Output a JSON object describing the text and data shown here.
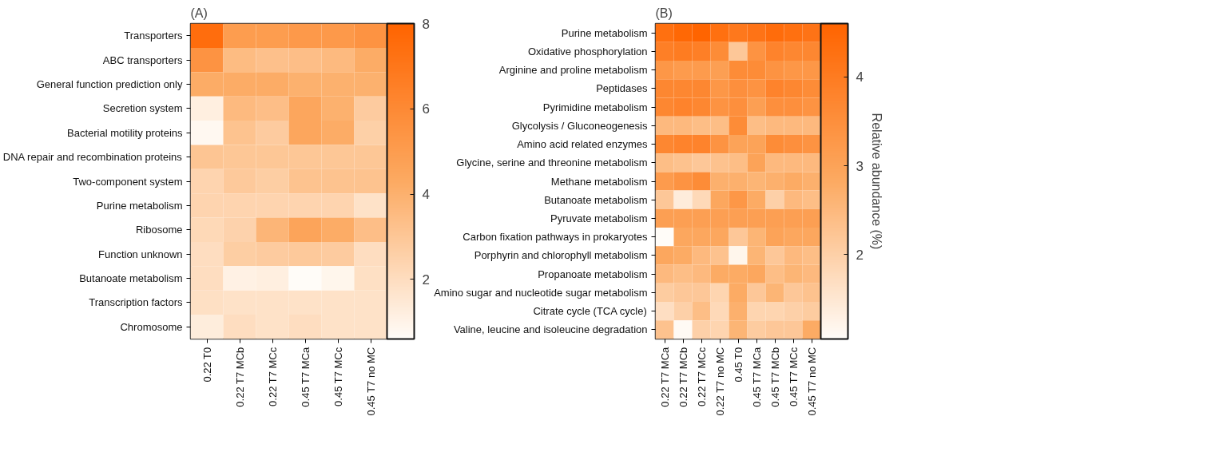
{
  "chart_data": [
    {
      "type": "heatmap",
      "title": "(A)",
      "categories": [
        "0.22 T0",
        "0.22 T7 MCb",
        "0.22 T7 MCc",
        "0.45 T7 MCa",
        "0.45 T7 MCc",
        "0.45 T7 no MC"
      ],
      "y_categories": [
        "Transporters",
        "ABC transporters",
        "General function prediction only",
        "Secretion system",
        "Bacterial motility proteins",
        "DNA repair and recombination proteins",
        "Two-component system",
        "Purine metabolism",
        "Ribosome",
        "Function unknown",
        "Butanoate metabolism",
        "Transcription factors",
        "Chromosome"
      ],
      "cells": [
        [
          7.5,
          5.0,
          5.0,
          5.2,
          5.2,
          5.5
        ],
        [
          5.5,
          3.5,
          3.3,
          3.4,
          3.6,
          4.2
        ],
        [
          4.2,
          4.2,
          4.2,
          4.0,
          4.0,
          4.0
        ],
        [
          1.2,
          3.6,
          3.4,
          4.5,
          4.0,
          2.8
        ],
        [
          0.8,
          3.2,
          2.8,
          4.5,
          4.2,
          2.6
        ],
        [
          3.1,
          3.0,
          3.0,
          3.0,
          3.0,
          3.0
        ],
        [
          2.4,
          2.9,
          2.7,
          3.2,
          3.2,
          3.2
        ],
        [
          2.4,
          2.4,
          2.4,
          2.4,
          2.4,
          1.8
        ],
        [
          2.2,
          2.5,
          3.8,
          4.6,
          4.2,
          3.4
        ],
        [
          2.0,
          2.7,
          2.8,
          2.9,
          2.8,
          2.0
        ],
        [
          2.0,
          1.1,
          1.2,
          0.6,
          0.9,
          1.9
        ],
        [
          1.9,
          1.8,
          1.8,
          1.8,
          1.8,
          1.8
        ],
        [
          1.3,
          2.0,
          1.8,
          2.0,
          1.8,
          1.8
        ]
      ],
      "clim": [
        0.6,
        8
      ],
      "cticks": [
        {
          "value": 2,
          "label": "2"
        },
        {
          "value": 4,
          "label": "4"
        },
        {
          "value": 6,
          "label": "6"
        },
        {
          "value": 8,
          "label": "8"
        }
      ]
    },
    {
      "type": "heatmap",
      "title": "(B)",
      "clabel": "Relative abundance (%)",
      "categories": [
        "0.22 T7 MCa",
        "0.22 T7 MCb",
        "0.22 T7 MCc",
        "0.22 T7 no MC",
        "0.45 T0",
        "0.45 T7 MCa",
        "0.45 T7 MCb",
        "0.45 T7 MCc",
        "0.45 T7 no MC"
      ],
      "y_categories": [
        "Purine metabolism",
        "Oxidative phosphorylation",
        "Arginine and proline metabolism",
        "Peptidases",
        "Pyrimidine metabolism",
        "Glycolysis / Gluconeogenesis",
        "Amino acid related enzymes",
        "Glycine, serine and threonine metabolism",
        "Methane metabolism",
        "Butanoate metabolism",
        "Pyruvate metabolism",
        "Carbon fixation pathways in prokaryotes",
        "Porphyrin and chlorophyll metabolism",
        "Propanoate metabolism",
        "Amino sugar and nucleotide sugar metabolism",
        "Citrate cycle (TCA cycle)",
        "Valine, leucine and isoleucine degradation"
      ],
      "cells": [
        [
          4.3,
          4.5,
          4.6,
          4.3,
          4.1,
          4.2,
          4.4,
          4.3,
          4.2
        ],
        [
          3.9,
          4.0,
          3.9,
          3.6,
          2.2,
          3.4,
          3.8,
          3.7,
          3.7
        ],
        [
          3.3,
          3.2,
          3.2,
          3.1,
          3.6,
          3.6,
          3.4,
          3.3,
          3.3
        ],
        [
          3.7,
          3.7,
          3.7,
          3.3,
          3.5,
          3.4,
          3.8,
          3.7,
          3.6
        ],
        [
          3.7,
          3.8,
          3.7,
          3.4,
          3.5,
          3.1,
          3.5,
          3.5,
          3.4
        ],
        [
          2.5,
          2.5,
          2.4,
          2.4,
          3.6,
          2.4,
          2.5,
          2.5,
          2.5
        ],
        [
          3.7,
          3.8,
          3.8,
          3.4,
          3.0,
          3.0,
          3.6,
          3.5,
          3.4
        ],
        [
          2.4,
          2.3,
          2.2,
          2.3,
          2.4,
          3.0,
          2.5,
          2.5,
          2.5
        ],
        [
          3.2,
          3.4,
          3.6,
          2.7,
          2.7,
          2.6,
          2.7,
          2.8,
          2.7
        ],
        [
          2.2,
          1.4,
          1.8,
          2.9,
          3.3,
          2.8,
          2.0,
          2.5,
          2.4
        ],
        [
          3.1,
          3.1,
          3.1,
          3.1,
          3.1,
          3.1,
          3.1,
          3.1,
          3.1
        ],
        [
          1.05,
          2.9,
          2.9,
          2.9,
          2.2,
          2.6,
          3.0,
          2.9,
          2.9
        ],
        [
          2.9,
          2.8,
          2.5,
          2.3,
          1.2,
          2.6,
          2.2,
          2.5,
          2.4
        ],
        [
          2.5,
          2.4,
          2.5,
          2.8,
          2.8,
          2.9,
          2.4,
          2.6,
          2.5
        ],
        [
          2.1,
          2.2,
          2.2,
          1.9,
          2.8,
          2.2,
          2.6,
          2.2,
          2.3
        ],
        [
          1.7,
          2.0,
          2.4,
          1.8,
          2.7,
          1.9,
          1.9,
          2.0,
          2.1
        ],
        [
          2.3,
          1.1,
          2.0,
          1.9,
          2.6,
          2.1,
          2.2,
          2.2,
          2.8
        ]
      ],
      "clim": [
        1.05,
        4.6
      ],
      "cticks": [
        {
          "value": 2,
          "label": "2"
        },
        {
          "value": 3,
          "label": "3"
        },
        {
          "value": 4,
          "label": "4"
        }
      ]
    }
  ]
}
